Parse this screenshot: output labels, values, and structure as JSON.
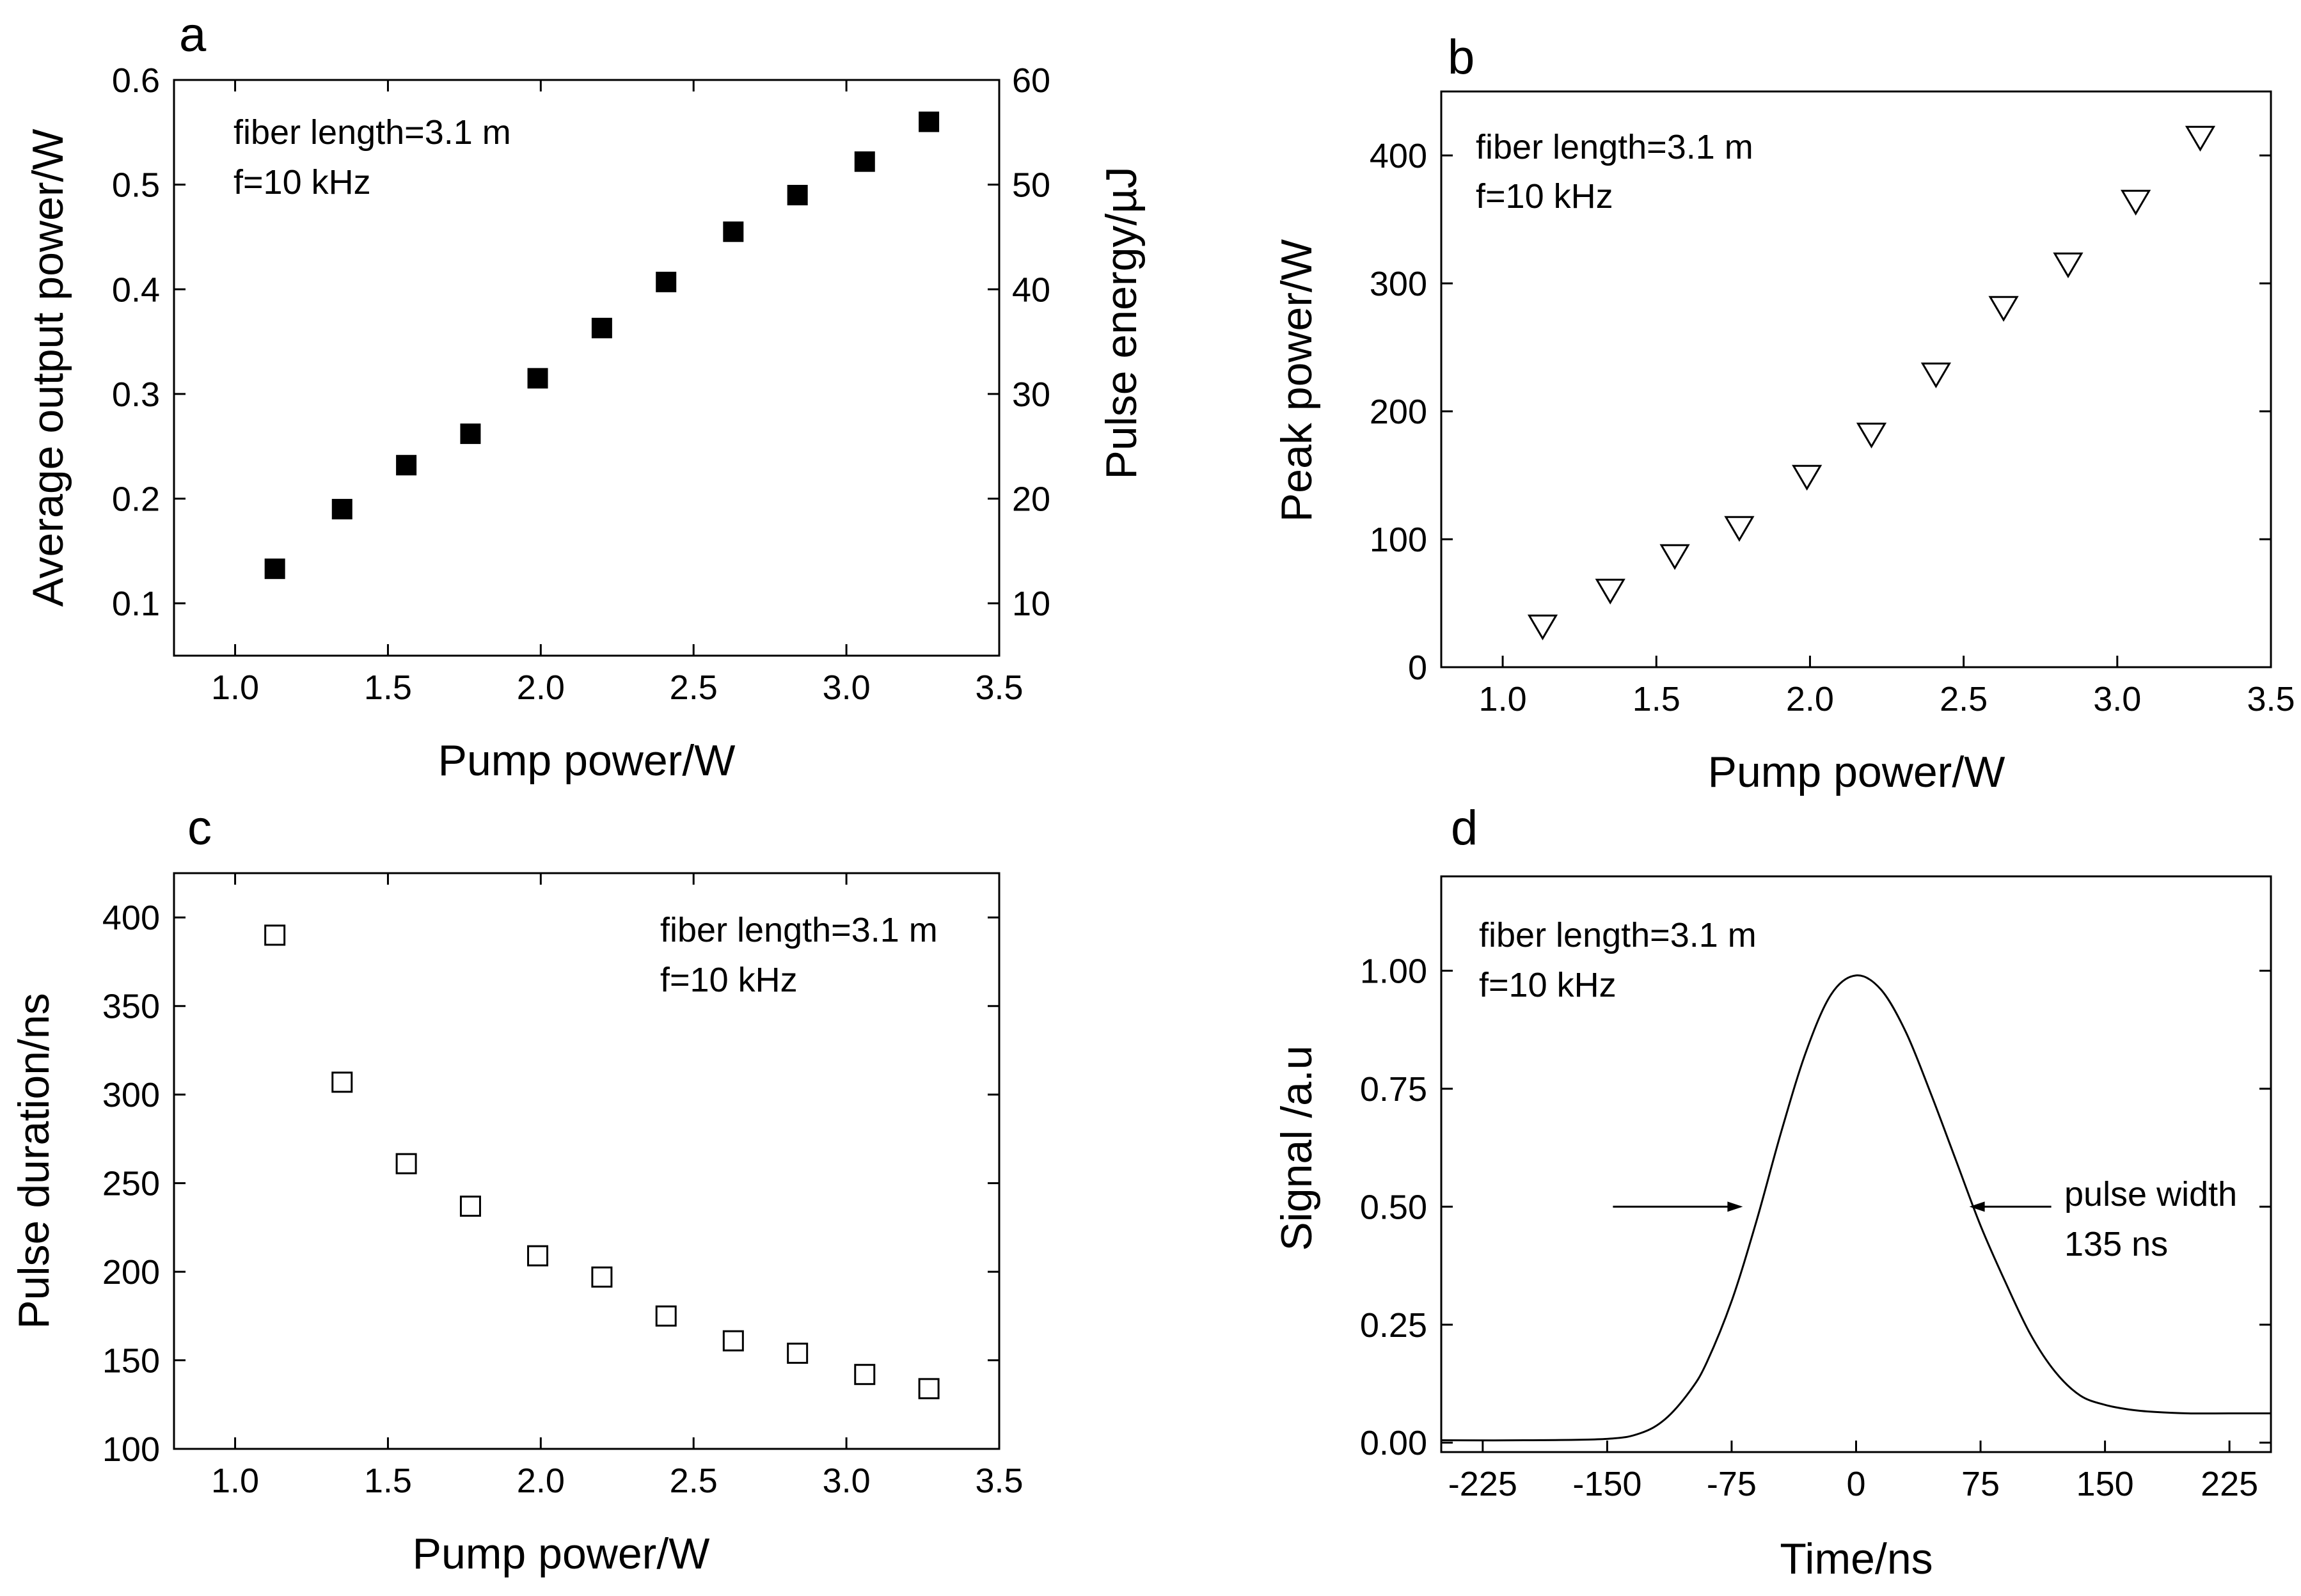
{
  "panels": [
    {
      "id": "a",
      "letter": "a",
      "chart_data": {
        "type": "scatter",
        "xlabel": "Pump power/W",
        "ylabel": "Average output power/W",
        "y2label": "Pulse energy/µJ",
        "xlim": [
          0.8,
          3.5
        ],
        "ylim": [
          0.05,
          0.6
        ],
        "y2lim": [
          5,
          60
        ],
        "xticks": [
          "1.0",
          "1.5",
          "2.0",
          "2.5",
          "3.0",
          "3.5"
        ],
        "yticks": [
          "0.1",
          "0.2",
          "0.3",
          "0.4",
          "0.5",
          "0.6"
        ],
        "y2ticks": [
          "10",
          "20",
          "30",
          "40",
          "50",
          "60"
        ],
        "marker": "filled-square",
        "annotations": [
          "fiber length=3.1 m",
          "f=10 kHz"
        ],
        "x": [
          1.13,
          1.35,
          1.56,
          1.77,
          1.99,
          2.2,
          2.41,
          2.63,
          2.84,
          3.06,
          3.27
        ],
        "y": [
          0.133,
          0.19,
          0.232,
          0.262,
          0.315,
          0.363,
          0.407,
          0.455,
          0.49,
          0.522,
          0.56
        ]
      }
    },
    {
      "id": "b",
      "letter": "b",
      "chart_data": {
        "type": "scatter",
        "xlabel": "Pump power/W",
        "ylabel": "Peak power/W",
        "xlim": [
          0.8,
          3.5
        ],
        "ylim": [
          0,
          450
        ],
        "xticks": [
          "1.0",
          "1.5",
          "2.0",
          "2.5",
          "3.0",
          "3.5"
        ],
        "yticks": [
          "0",
          "100",
          "200",
          "300",
          "400"
        ],
        "marker": "open-down-triangle",
        "annotations": [
          "fiber length=3.1 m",
          "f=10 kHz"
        ],
        "x": [
          1.13,
          1.35,
          1.56,
          1.77,
          1.99,
          2.2,
          2.41,
          2.63,
          2.84,
          3.06,
          3.27
        ],
        "y": [
          33,
          61,
          88,
          110,
          150,
          183,
          230,
          282,
          316,
          365,
          415
        ]
      }
    },
    {
      "id": "c",
      "letter": "c",
      "chart_data": {
        "type": "scatter",
        "xlabel": "Pump power/W",
        "ylabel": "Pulse duration/ns",
        "xlim": [
          0.8,
          3.5
        ],
        "ylim": [
          100,
          425
        ],
        "xticks": [
          "1.0",
          "1.5",
          "2.0",
          "2.5",
          "3.0",
          "3.5"
        ],
        "yticks": [
          "100",
          "150",
          "200",
          "250",
          "300",
          "350",
          "400"
        ],
        "marker": "open-square",
        "annotations": [
          "fiber length=3.1 m",
          "f=10 kHz"
        ],
        "x": [
          1.13,
          1.35,
          1.56,
          1.77,
          1.99,
          2.2,
          2.41,
          2.63,
          2.84,
          3.06,
          3.27
        ],
        "y": [
          390,
          307,
          261,
          237,
          209,
          197,
          175,
          161,
          154,
          142,
          134
        ]
      }
    },
    {
      "id": "d",
      "letter": "d",
      "chart_data": {
        "type": "line",
        "xlabel": "Time/ns",
        "ylabel": "Signal /a.u",
        "xlim": [
          -250,
          250
        ],
        "ylim": [
          -0.02,
          1.2
        ],
        "xticks": [
          "-225",
          "-150",
          "-75",
          "0",
          "75",
          "150",
          "225"
        ],
        "yticks": [
          "0.00",
          "0.25",
          "0.50",
          "0.75",
          "1.00"
        ],
        "annotations": [
          "fiber length=3.1 m",
          "f=10 kHz",
          "pulse width",
          "135 ns"
        ],
        "x": [
          -250,
          -200,
          -150,
          -130,
          -115,
          -100,
          -90,
          -75,
          -60,
          -45,
          -30,
          -15,
          0,
          15,
          30,
          45,
          60,
          75,
          90,
          105,
          120,
          135,
          150,
          165,
          180,
          200,
          225,
          250
        ],
        "y": [
          0.005,
          0.005,
          0.008,
          0.02,
          0.05,
          0.11,
          0.17,
          0.3,
          0.47,
          0.66,
          0.83,
          0.95,
          0.99,
          0.96,
          0.87,
          0.74,
          0.6,
          0.46,
          0.34,
          0.23,
          0.15,
          0.1,
          0.08,
          0.07,
          0.065,
          0.062,
          0.062,
          0.062
        ],
        "fwhm_left": -67.5,
        "fwhm_right": 67.5
      }
    }
  ]
}
